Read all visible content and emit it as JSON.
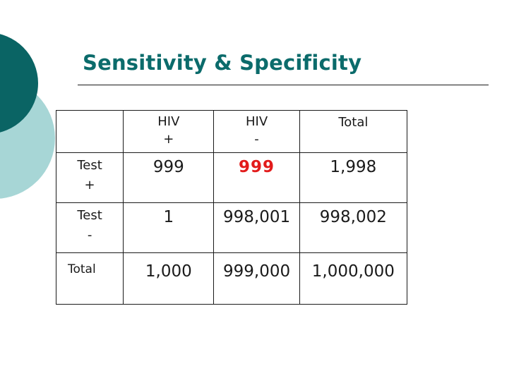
{
  "slide": {
    "title": "Sensitivity & Specificity",
    "colors": {
      "title": "#0b6b6b",
      "highlight": "#e21b1b",
      "circle_dark": "#0a6464",
      "circle_light": "#a7d6d6"
    }
  },
  "table": {
    "columns": [
      {
        "line1": "",
        "line2": ""
      },
      {
        "line1": "HIV",
        "line2": "+"
      },
      {
        "line1": "HIV",
        "line2": "-"
      },
      {
        "line1": "Total",
        "line2": ""
      }
    ],
    "rows": [
      {
        "label_line1": "Test",
        "label_line2": "+",
        "values": [
          "999",
          "999",
          "1,998"
        ]
      },
      {
        "label_line1": "Test",
        "label_line2": "-",
        "values": [
          "1",
          "998,001",
          "998,002"
        ]
      },
      {
        "label_line1": "Total",
        "label_line2": "",
        "values": [
          "1,000",
          "999,000",
          "1,000,000"
        ]
      }
    ]
  }
}
